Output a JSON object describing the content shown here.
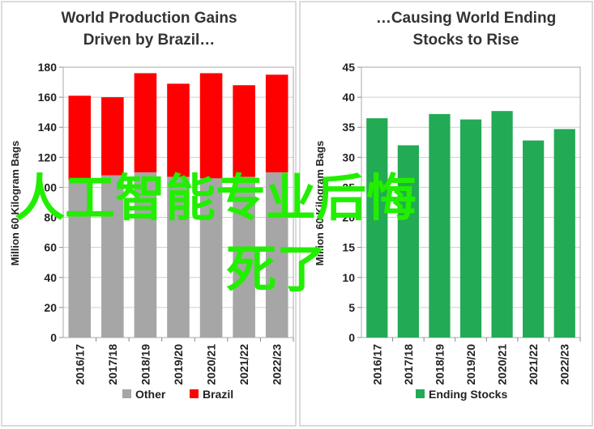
{
  "chart_data": [
    {
      "type": "bar",
      "stacked": true,
      "title_lines": [
        "World Production Gains",
        "Driven by Brazil…"
      ],
      "ylabel": "Million 60 Kilogram Bags",
      "ylim": [
        0,
        180
      ],
      "yticks": [
        0,
        20,
        40,
        60,
        80,
        100,
        120,
        140,
        160,
        180
      ],
      "grid": true,
      "legend_position": "bottom",
      "categories": [
        "2016/17",
        "2017/18",
        "2018/19",
        "2019/20",
        "2020/21",
        "2021/22",
        "2022/23"
      ],
      "series": [
        {
          "name": "Other",
          "color": "#a6a6a6",
          "values": [
            105,
            108,
            110,
            107,
            106,
            107,
            110
          ]
        },
        {
          "name": "Brazil",
          "color": "#ff0000",
          "values": [
            56,
            52,
            66,
            62,
            70,
            61,
            65
          ]
        }
      ]
    },
    {
      "type": "bar",
      "title_lines": [
        "…Causing World Ending",
        "Stocks to Rise"
      ],
      "ylabel": "Million 60 Kilogram Bags",
      "ylim": [
        0,
        45
      ],
      "yticks": [
        0,
        5,
        10,
        15,
        20,
        25,
        30,
        35,
        40,
        45
      ],
      "grid": true,
      "legend_position": "bottom",
      "categories": [
        "2016/17",
        "2017/18",
        "2018/19",
        "2019/20",
        "2020/21",
        "2021/22",
        "2022/23"
      ],
      "series": [
        {
          "name": "Ending Stocks",
          "color": "#22aa55",
          "values": [
            36.5,
            32.0,
            37.2,
            36.3,
            37.7,
            32.8,
            34.7
          ]
        }
      ]
    }
  ],
  "watermark": {
    "line1": "人工智能专业后悔",
    "line2": "死了",
    "color": "#22ee00"
  }
}
